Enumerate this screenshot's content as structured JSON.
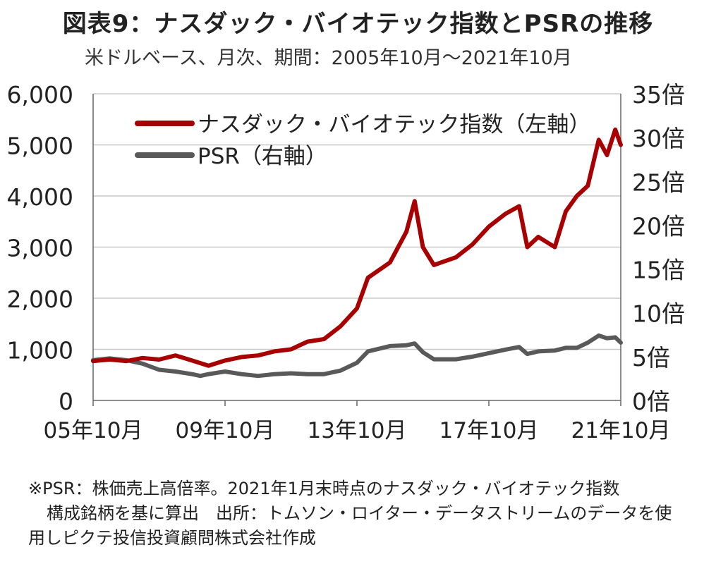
{
  "title": "図表9：ナスダック・バイオテック指数とPSRの推移",
  "subtitle": "米ドルベース、月次、期間：2005年10月～2021年10月",
  "footnote": {
    "line1": "※PSR：株価売上高倍率。2021年1月末時点のナスダック・バイオテック指数",
    "line2": "構成銘柄を基に算出　出所：トムソン・ロイター・データストリームのデータを使",
    "line3": "用しピクテ投信投資顧問株式会社作成"
  },
  "chart_data": {
    "type": "line",
    "grid": true,
    "legend_position": "top-left",
    "x_tick_labels": [
      "05年10月",
      "09年10月",
      "13年10月",
      "17年10月",
      "21年10月"
    ],
    "y_left": {
      "lim": [
        0,
        6000
      ],
      "tick_labels": [
        "0",
        "1,000",
        "2,000",
        "3,000",
        "4,000",
        "5,000",
        "6,000"
      ]
    },
    "y_right": {
      "lim": [
        0,
        35
      ],
      "tick_labels": [
        "0倍",
        "5倍",
        "10倍",
        "15倍",
        "20倍",
        "25倍",
        "30倍",
        "35倍"
      ]
    },
    "series": [
      {
        "name": "ナスダック・バイオテック指数（左軸）",
        "axis": "left",
        "color": "#A80000",
        "x": [
          "2005-10",
          "2006-04",
          "2006-10",
          "2007-04",
          "2007-10",
          "2008-04",
          "2008-10",
          "2009-04",
          "2009-10",
          "2010-04",
          "2010-10",
          "2011-04",
          "2011-10",
          "2012-04",
          "2012-10",
          "2013-04",
          "2013-10",
          "2014-02",
          "2014-10",
          "2015-04",
          "2015-07",
          "2015-10",
          "2016-02",
          "2016-10",
          "2017-04",
          "2017-10",
          "2018-04",
          "2018-09",
          "2018-12",
          "2019-04",
          "2019-10",
          "2020-02",
          "2020-06",
          "2020-10",
          "2021-02",
          "2021-05",
          "2021-08",
          "2021-10"
        ],
        "values": [
          770,
          800,
          770,
          830,
          800,
          880,
          780,
          680,
          780,
          850,
          880,
          960,
          1000,
          1150,
          1200,
          1450,
          1800,
          2400,
          2700,
          3300,
          3900,
          3000,
          2650,
          2800,
          3050,
          3400,
          3650,
          3800,
          3000,
          3200,
          3000,
          3700,
          4000,
          4200,
          5100,
          4800,
          5300,
          5000
        ]
      },
      {
        "name": "PSR（右軸）",
        "axis": "right",
        "color": "#595959",
        "x": [
          "2005-10",
          "2006-04",
          "2006-10",
          "2007-04",
          "2007-10",
          "2008-04",
          "2008-10",
          "2009-01",
          "2009-04",
          "2009-10",
          "2010-04",
          "2010-10",
          "2011-04",
          "2011-10",
          "2012-04",
          "2012-10",
          "2013-04",
          "2013-10",
          "2014-02",
          "2014-10",
          "2015-04",
          "2015-07",
          "2015-10",
          "2016-02",
          "2016-10",
          "2017-04",
          "2017-10",
          "2018-04",
          "2018-09",
          "2018-12",
          "2019-04",
          "2019-10",
          "2020-02",
          "2020-06",
          "2020-10",
          "2021-02",
          "2021-05",
          "2021-08",
          "2021-10"
        ],
        "values": [
          4.6,
          4.8,
          4.6,
          4.2,
          3.5,
          3.3,
          3.0,
          2.8,
          3.0,
          3.3,
          3.0,
          2.8,
          3.0,
          3.1,
          3.0,
          3.0,
          3.4,
          4.3,
          5.6,
          6.2,
          6.3,
          6.5,
          5.5,
          4.7,
          4.7,
          5.0,
          5.4,
          5.8,
          6.1,
          5.3,
          5.6,
          5.7,
          6.0,
          6.0,
          6.6,
          7.4,
          7.1,
          7.2,
          6.6
        ]
      }
    ]
  }
}
